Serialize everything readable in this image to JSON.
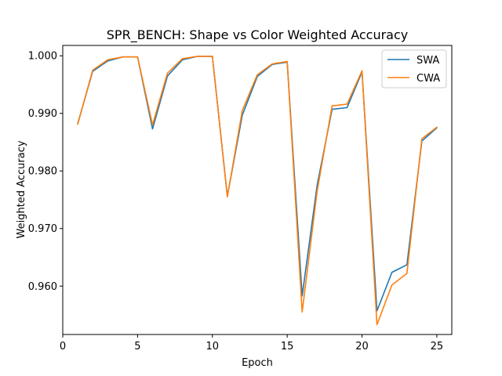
{
  "chart_data": {
    "type": "line",
    "title": "SPR_BENCH: Shape vs Color Weighted Accuracy",
    "xlabel": "Epoch",
    "ylabel": "Weighted Accuracy",
    "xlim": [
      0,
      26
    ],
    "ylim": [
      0.9516,
      1.0018
    ],
    "xticks": [
      0,
      5,
      10,
      15,
      20,
      25
    ],
    "yticks": [
      0.96,
      0.97,
      0.98,
      0.99,
      1.0
    ],
    "ytick_labels": [
      "0.960",
      "0.970",
      "0.980",
      "0.990",
      "1.000"
    ],
    "legend_position": "top-right",
    "grid": false,
    "x": [
      1,
      2,
      3,
      4,
      5,
      6,
      7,
      8,
      9,
      10,
      11,
      12,
      13,
      14,
      15,
      16,
      17,
      18,
      19,
      20,
      21,
      22,
      23,
      24,
      25
    ],
    "series": [
      {
        "name": "SWA",
        "color": "#1f77b4",
        "values": [
          0.9882,
          0.9973,
          0.9991,
          0.9998,
          0.9998,
          0.9873,
          0.9965,
          0.9993,
          0.9999,
          0.9999,
          0.9756,
          0.9897,
          0.9964,
          0.9985,
          0.9989,
          0.9583,
          0.9775,
          0.9907,
          0.991,
          0.9972,
          0.9557,
          0.9624,
          0.9637,
          0.9852,
          0.9875
        ]
      },
      {
        "name": "CWA",
        "color": "#ff7f0e",
        "values": [
          0.9881,
          0.9975,
          0.9993,
          0.9998,
          0.9998,
          0.988,
          0.997,
          0.9995,
          0.9999,
          0.9999,
          0.9755,
          0.9905,
          0.9967,
          0.9986,
          0.999,
          0.9555,
          0.9765,
          0.9913,
          0.9916,
          0.9974,
          0.9533,
          0.9602,
          0.9622,
          0.9856,
          0.9876
        ]
      }
    ]
  }
}
